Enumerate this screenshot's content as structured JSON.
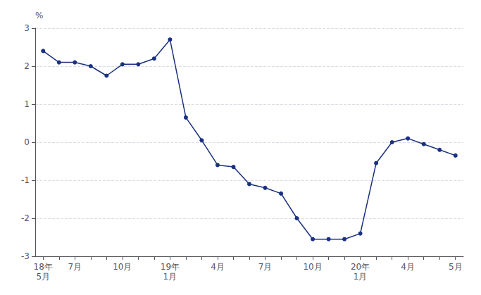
{
  "chart_data": {
    "type": "line",
    "y_label": "%",
    "categories": [
      "18年\n5月",
      null,
      "7月",
      null,
      null,
      "10月",
      null,
      null,
      "19年\n1月",
      null,
      null,
      "4月",
      null,
      null,
      "7月",
      null,
      null,
      "10月",
      null,
      null,
      "20年\n1月",
      null,
      null,
      "4月",
      null,
      null,
      "5月"
    ],
    "values": [
      2.4,
      2.1,
      2.1,
      2.0,
      1.75,
      2.05,
      2.05,
      2.2,
      2.7,
      0.65,
      0.05,
      -0.6,
      -0.65,
      -1.1,
      -1.2,
      -1.35,
      -2.0,
      -2.55,
      -2.55,
      -2.55,
      -2.4,
      -0.55,
      0.0,
      0.1,
      -0.05,
      -0.2,
      -0.35
    ],
    "color": "#1a3080",
    "marker": "circle",
    "ylim": [
      -3,
      3
    ],
    "yticks": [
      -3,
      -2,
      -1,
      0,
      1,
      2,
      3
    ],
    "grid": true
  }
}
